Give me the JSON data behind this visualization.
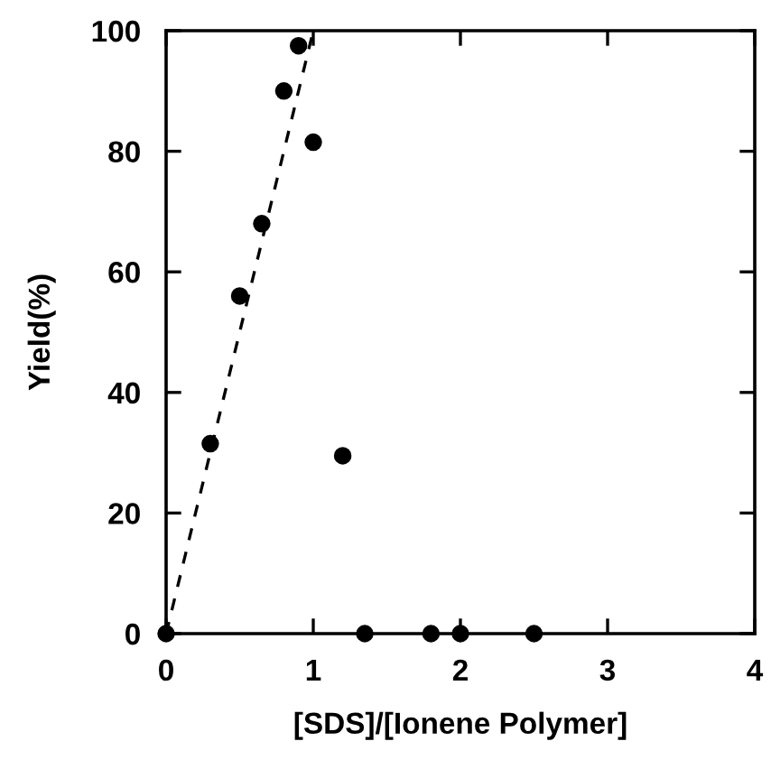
{
  "chart_data": {
    "type": "scatter",
    "xlabel": "[SDS]/[Ionene Polymer]",
    "ylabel": "Yield(%)",
    "xlim": [
      0,
      4
    ],
    "ylim": [
      0,
      100
    ],
    "xticks": [
      0,
      1,
      2,
      3,
      4
    ],
    "yticks": [
      0,
      20,
      40,
      60,
      80,
      100
    ],
    "grid": false,
    "legend": false,
    "series": [
      {
        "color": "#000000",
        "marker": "circle",
        "x": [
          0,
          0.3,
          0.5,
          0.65,
          0.8,
          0.9,
          1.0,
          1.2,
          1.35,
          1.8,
          2.0,
          2.5
        ],
        "values": [
          0,
          31.5,
          56,
          68,
          90,
          97.5,
          81.5,
          29.5,
          0,
          0,
          0,
          0
        ]
      },
      {
        "type": "line",
        "color": "#000000",
        "line_style": "dashed",
        "x": [
          0,
          1.0
        ],
        "values": [
          0,
          100
        ]
      }
    ]
  }
}
